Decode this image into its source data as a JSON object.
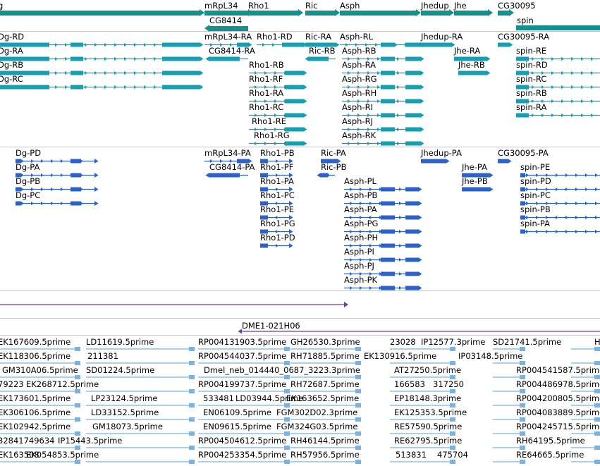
{
  "colors": {
    "gene": "#14908f",
    "gene_dark": "#0d7a79",
    "tx_primary": "#14a0b4",
    "tx_secondary": "#2e63c5",
    "evidence": "#6a3fa0",
    "est": "#7ab2e0",
    "separator": "#c4c4c4"
  },
  "gene_track": {
    "genes": [
      {
        "name": "g",
        "glyph": "bar-right"
      },
      {
        "name": "mRpL34",
        "glyph": "bar-right"
      },
      {
        "name": "CG8414",
        "glyph": "bar-left"
      },
      {
        "name": "Rho1",
        "glyph": "bar-right"
      },
      {
        "name": "Ric",
        "glyph": "bar-right"
      },
      {
        "name": "Asph",
        "glyph": "bar-right"
      },
      {
        "name": "Jhedup",
        "glyph": "bar-right"
      },
      {
        "name": "Jhe",
        "glyph": "bar-right"
      },
      {
        "name": "CG30095",
        "glyph": "bar-right"
      },
      {
        "name": "spin",
        "glyph": "bar-right"
      }
    ]
  },
  "transcripts_a": {
    "items": [
      "Dg-RD",
      "Dg-RA",
      "Dg-RB",
      "Dg-RC",
      "mRpL34-RA",
      "CG8414-RA",
      "Rho1-RD",
      "Rho1-RB",
      "Rho1-RF",
      "Rho1-RA",
      "Rho1-RC",
      "Rho1-RE",
      "Rho1-RG",
      "Ric-RA",
      "Ric-RB",
      "Asph-RL",
      "Asph-RB",
      "Asph-RA",
      "Asph-RG",
      "Asph-RH",
      "Asph-RI",
      "Asph-RJ",
      "Asph-RK",
      "Jhedup-RA",
      "Jhe-RA",
      "Jhe-RB",
      "CG30095-RA",
      "spin-RE",
      "spin-RD",
      "spin-RC",
      "spin-RB",
      "spin-RA"
    ]
  },
  "transcripts_b": {
    "items": [
      "Dg-PD",
      "Dg-PA",
      "Dg-PB",
      "Dg-PC",
      "mRpL34-PA",
      "CG8414-PA",
      "Rho1-PB",
      "Rho1-PF",
      "Rho1-PA",
      "Rho1-PC",
      "Rho1-PE",
      "Rho1-PG",
      "Rho1-PD",
      "Ric-PA",
      "Ric-PB",
      "Asph-PL",
      "Asph-PB",
      "Asph-PA",
      "Asph-PG",
      "Asph-PH",
      "Asph-PI",
      "Asph-PJ",
      "Asph-PK",
      "Jhedup-PA",
      "Jhe-PA",
      "Jhe-PB",
      "CG30095-PA",
      "spin-PE",
      "spin-PD",
      "spin-PC",
      "spin-PB",
      "spin-PA"
    ]
  },
  "clone_track": {
    "label": "DME1-021H06"
  },
  "est_track": {
    "items": [
      "EK167609.5prime",
      "LD11619.5prime",
      "RP004131903.5prime",
      "GH26530.3prime",
      "23028",
      "IP12577.3prime",
      "SD21741.5prime",
      "H",
      "EK118306.5prime",
      "211381",
      "RP004544037.5prime",
      "RH71885.5prime",
      "EK130916.5prime",
      "IP03148.5prime",
      "GM310A06.5prime",
      "SD01224.5prime",
      "Dmel_neb_014440_0687_3223.3prime",
      "AT27250.5prime",
      "RP004541587.5prime",
      "79223",
      "EK268712.5prime",
      "RP004199737.5prime",
      "166583",
      "317250",
      "RP004486978.5prime",
      "EK173601.5prime",
      "LP23124.5prime",
      "533481",
      "LD03944.5prime",
      "EK163652.5prime",
      "EP18148.3prime",
      "RP004200805.5prime",
      "RH72687.5prime",
      "EK306106.5prime",
      "LD33152.5prime",
      "EN06109.5prime",
      "FGM302D02.3prime",
      "EK125353.5prime",
      "RP004083889.5prime",
      "EK102942.5prime",
      "GM18073.5prime",
      "EN09615.5prime",
      "FGM324G03.5prime",
      "RE57590.5prime",
      "RP004245715.5prime",
      "32841749634",
      "IP15443.5prime",
      "RP004504612.5prime",
      "RH46144.5prime",
      "RE62795.5prime",
      "RH64195.5prime",
      "EK163508",
      "EK054853.5prime",
      "RP004253354.5prime",
      "RH57956.5prime",
      "513831",
      "475704",
      "RE64665.5prime"
    ]
  }
}
